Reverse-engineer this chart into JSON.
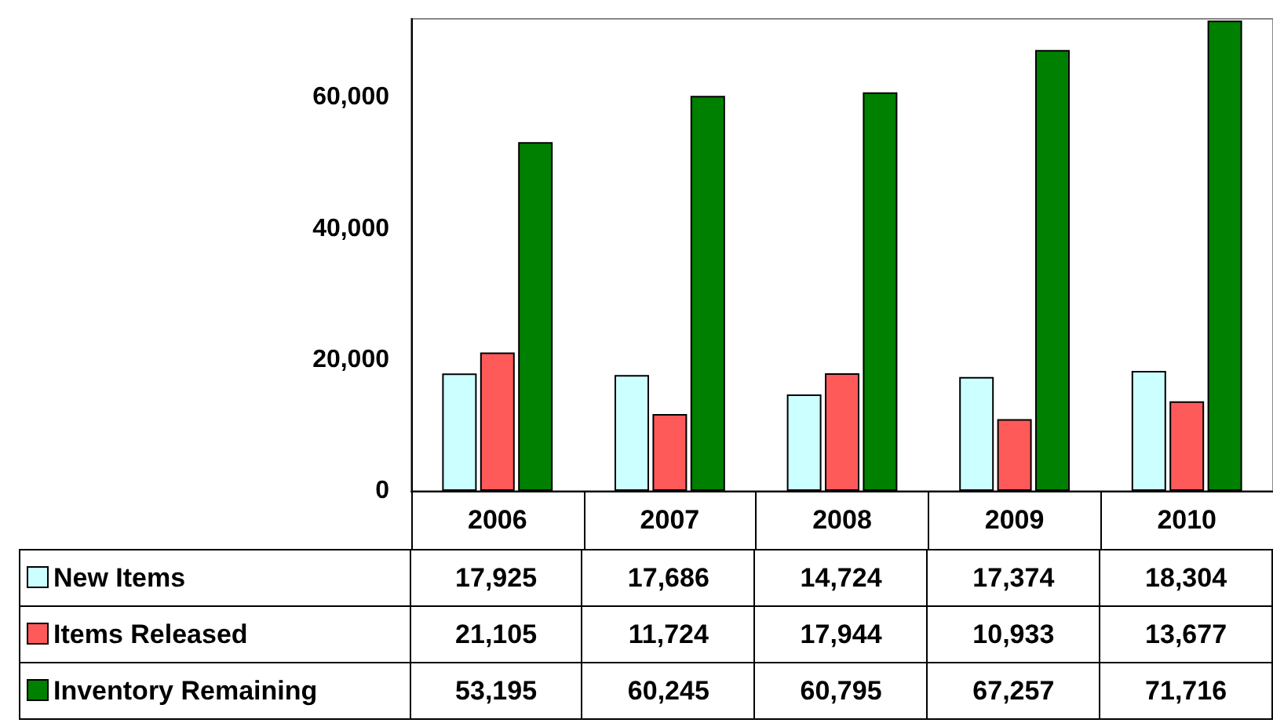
{
  "chart_data": {
    "type": "bar",
    "categories": [
      "2006",
      "2007",
      "2008",
      "2009",
      "2010"
    ],
    "series": [
      {
        "name": "New Items",
        "color": "#ccffff",
        "values": [
          17925,
          17686,
          14724,
          17374,
          18304
        ],
        "value_labels": [
          "17,925",
          "17,686",
          "14,724",
          "17,374",
          "18,304"
        ]
      },
      {
        "name": "Items Released",
        "color": "#ff5a5a",
        "values": [
          21105,
          11724,
          17944,
          10933,
          13677
        ],
        "value_labels": [
          "21,105",
          "11,724",
          "17,944",
          "10,933",
          "13,677"
        ]
      },
      {
        "name": "Inventory Remaining",
        "color": "#008000",
        "values": [
          53195,
          60245,
          60795,
          67257,
          71716
        ],
        "value_labels": [
          "53,195",
          "60,245",
          "60,795",
          "67,257",
          "71,716"
        ]
      }
    ],
    "ylim": [
      0,
      72000
    ],
    "yticks": [
      {
        "value": 0,
        "label": "0"
      },
      {
        "value": 20000,
        "label": "20,000"
      },
      {
        "value": 40000,
        "label": "40,000"
      },
      {
        "value": 60000,
        "label": "60,000"
      }
    ],
    "grid": false,
    "legend": "bottom"
  }
}
